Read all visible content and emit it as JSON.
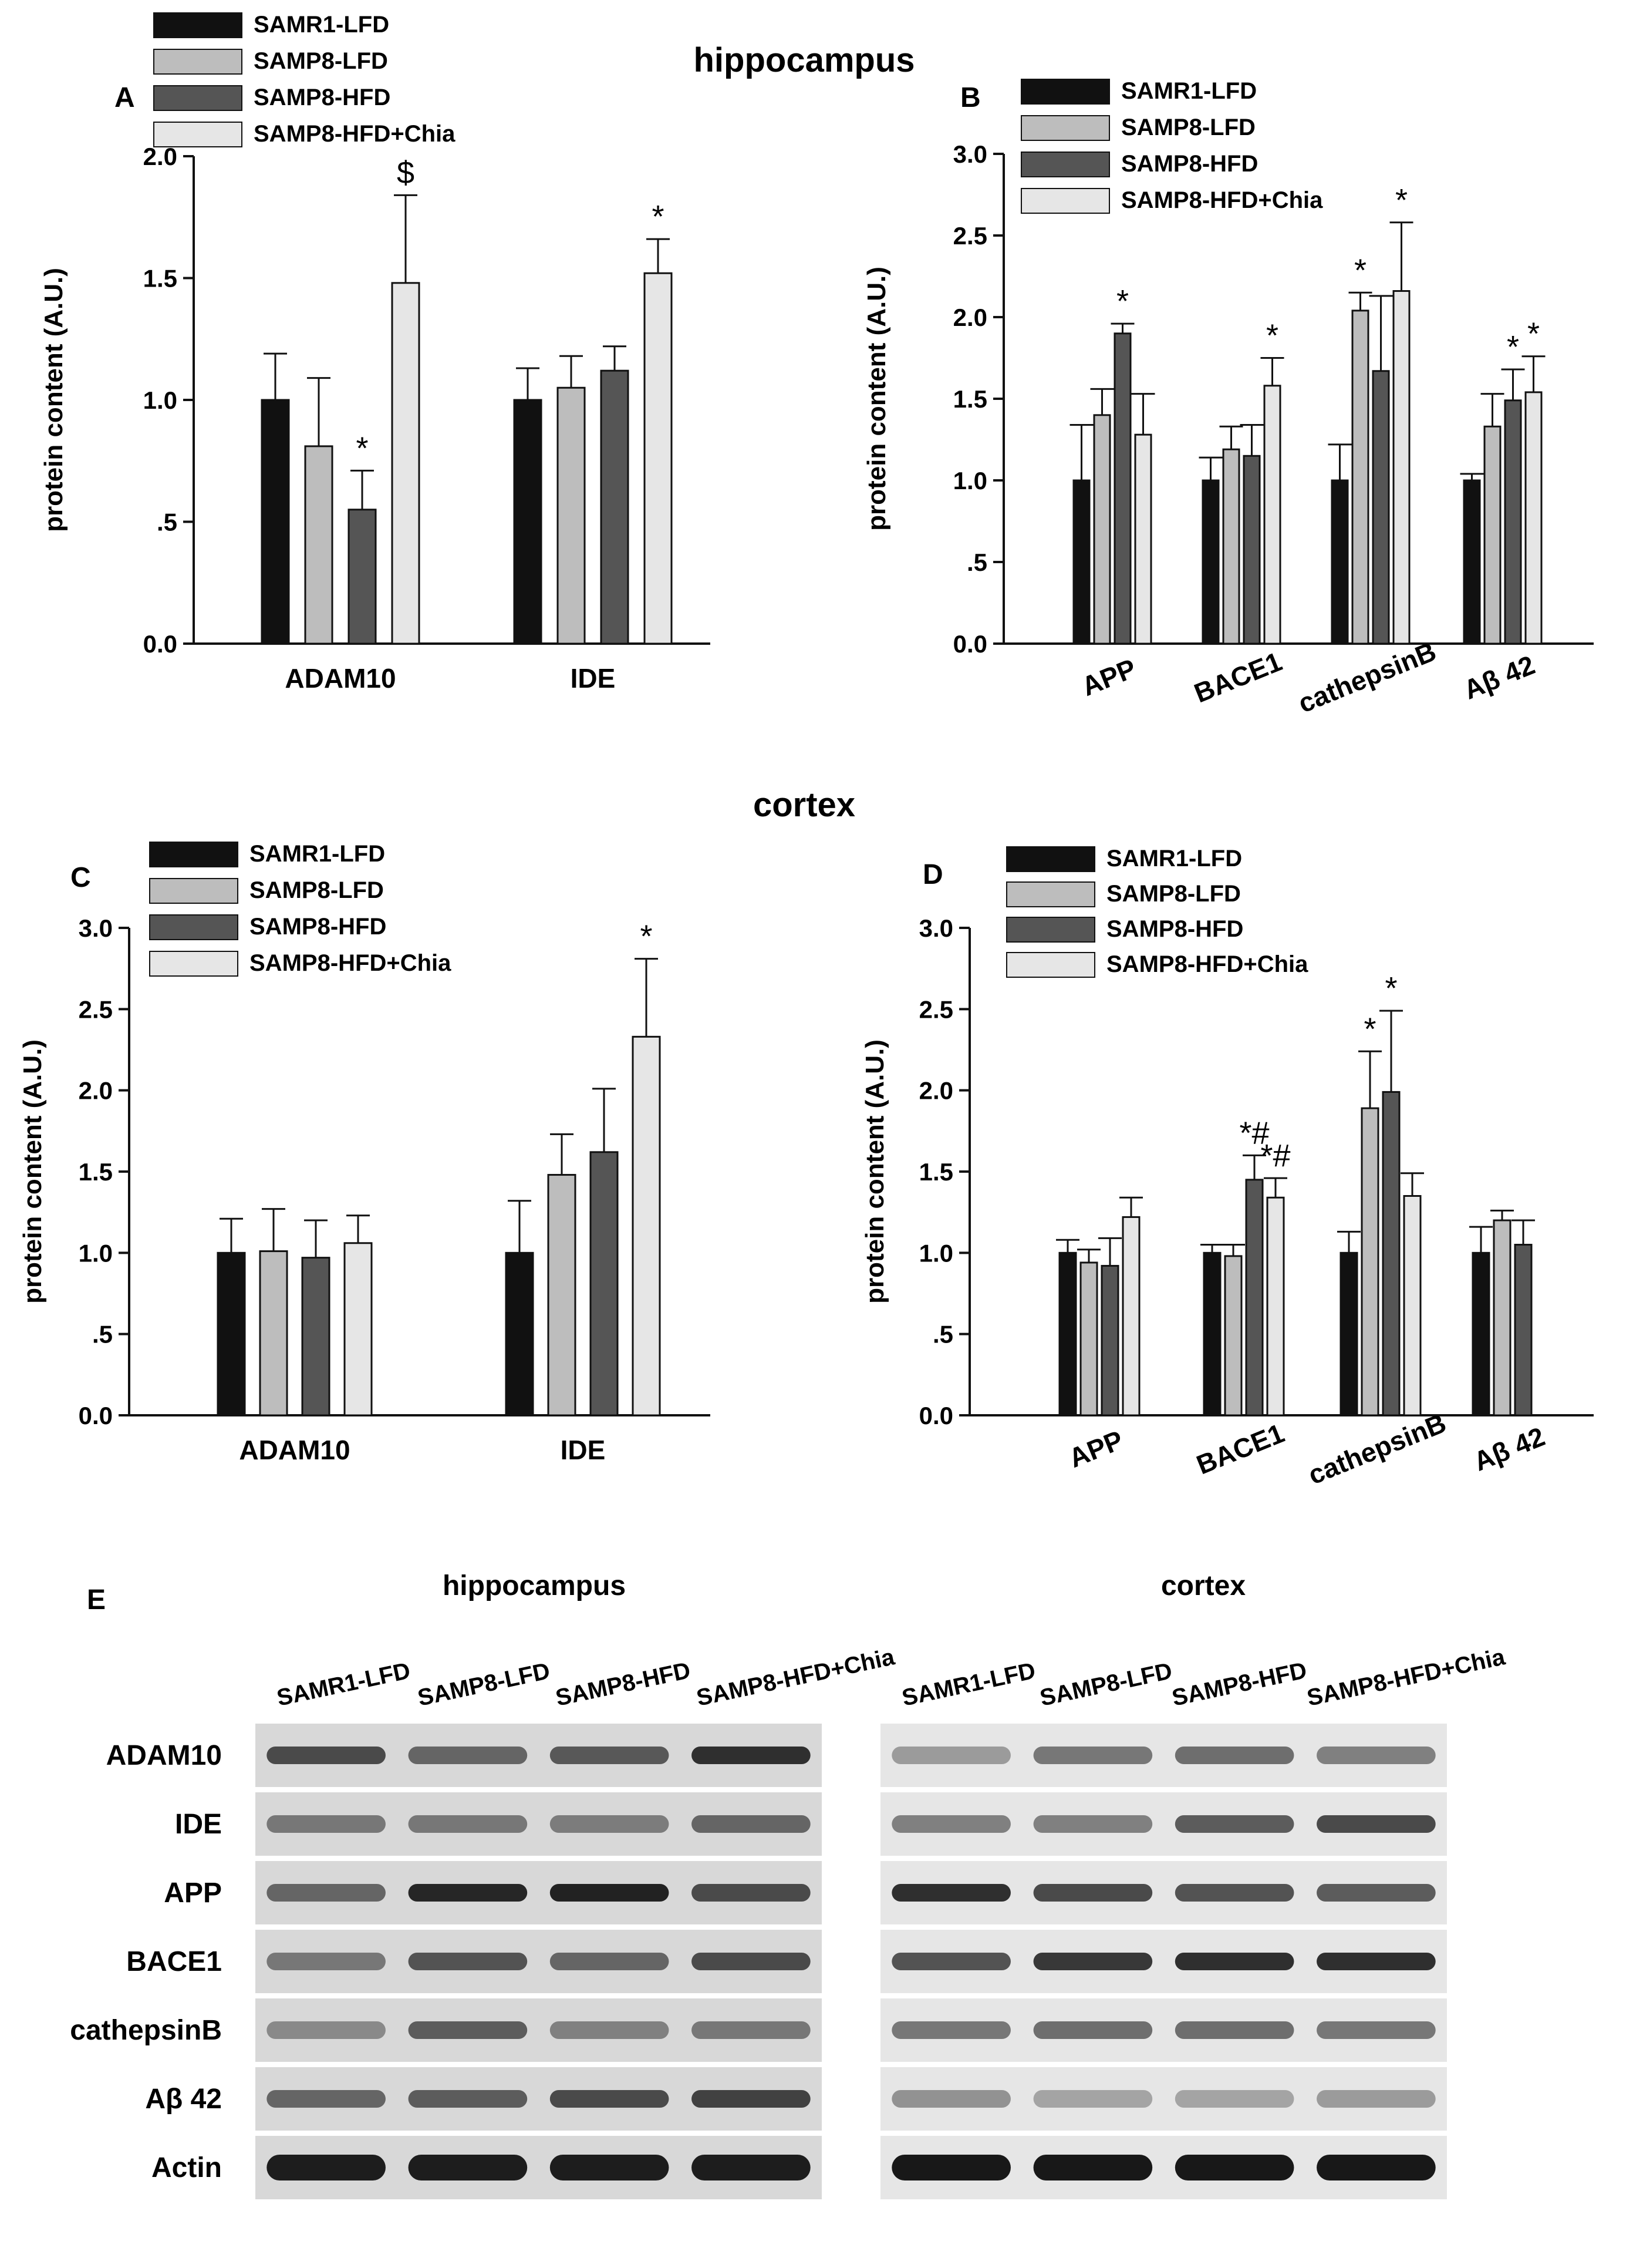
{
  "figure": {
    "section_titles": {
      "hippocampus": "hippocampus",
      "cortex": "cortex"
    },
    "panel_letters": [
      "A",
      "B",
      "C",
      "D",
      "E"
    ]
  },
  "colors": {
    "SAMR1-LFD": "#111111",
    "SAMP8-LFD": "#bdbdbd",
    "SAMP8-HFD": "#555555",
    "SAMP8-HFD+Chia": "#e6e6e6"
  },
  "chart_data": [
    {
      "panel": "A",
      "type": "bar",
      "ylabel": "protein content (A.U.)",
      "ylim": [
        0,
        2.0
      ],
      "yticks": [
        "0.0",
        ".5",
        "1.0",
        "1.5",
        "2.0"
      ],
      "categories": [
        "ADAM10",
        "IDE"
      ],
      "category_label_rotation": 0,
      "legend": [
        "SAMR1-LFD",
        "SAMP8-LFD",
        "SAMP8-HFD",
        "SAMP8-HFD+Chia"
      ],
      "series": [
        {
          "name": "SAMR1-LFD",
          "values": [
            1.0,
            1.0
          ],
          "errors": [
            0.19,
            0.13
          ],
          "marks": [
            "",
            ""
          ]
        },
        {
          "name": "SAMP8-LFD",
          "values": [
            0.81,
            1.05
          ],
          "errors": [
            0.28,
            0.13
          ],
          "marks": [
            "",
            ""
          ]
        },
        {
          "name": "SAMP8-HFD",
          "values": [
            0.55,
            1.12
          ],
          "errors": [
            0.16,
            0.1
          ],
          "marks": [
            "*",
            ""
          ]
        },
        {
          "name": "SAMP8-HFD+Chia",
          "values": [
            1.48,
            1.52
          ],
          "errors": [
            0.36,
            0.14
          ],
          "marks": [
            "$",
            "*"
          ]
        }
      ]
    },
    {
      "panel": "B",
      "type": "bar",
      "ylabel": "protein content (A.U.)",
      "ylim": [
        0,
        3.0
      ],
      "yticks": [
        "0.0",
        ".5",
        "1.0",
        "1.5",
        "2.0",
        "2.5",
        "3.0"
      ],
      "categories": [
        "APP",
        "BACE1",
        "cathepsinB",
        "Aβ 42"
      ],
      "category_label_rotation": -22,
      "legend": [
        "SAMR1-LFD",
        "SAMP8-LFD",
        "SAMP8-HFD",
        "SAMP8-HFD+Chia"
      ],
      "series": [
        {
          "name": "SAMR1-LFD",
          "values": [
            1.0,
            1.0,
            1.0,
            1.0
          ],
          "errors": [
            0.34,
            0.14,
            0.22,
            0.04
          ],
          "marks": [
            "",
            "",
            "",
            ""
          ]
        },
        {
          "name": "SAMP8-LFD",
          "values": [
            1.4,
            1.19,
            2.04,
            1.33
          ],
          "errors": [
            0.16,
            0.14,
            0.11,
            0.2
          ],
          "marks": [
            "",
            "",
            "*",
            ""
          ]
        },
        {
          "name": "SAMP8-HFD",
          "values": [
            1.9,
            1.15,
            1.67,
            1.49
          ],
          "errors": [
            0.06,
            0.19,
            0.46,
            0.19
          ],
          "marks": [
            "*",
            "",
            "",
            "*"
          ]
        },
        {
          "name": "SAMP8-HFD+Chia",
          "values": [
            1.28,
            1.58,
            2.16,
            1.54
          ],
          "errors": [
            0.25,
            0.17,
            0.42,
            0.22
          ],
          "marks": [
            "",
            "*",
            "*",
            "*"
          ]
        }
      ]
    },
    {
      "panel": "C",
      "type": "bar",
      "ylabel": "protein content (A.U.)",
      "ylim": [
        0,
        3.0
      ],
      "yticks": [
        "0.0",
        ".5",
        "1.0",
        "1.5",
        "2.0",
        "2.5",
        "3.0"
      ],
      "categories": [
        "ADAM10",
        "IDE"
      ],
      "category_label_rotation": 0,
      "legend": [
        "SAMR1-LFD",
        "SAMP8-LFD",
        "SAMP8-HFD",
        "SAMP8-HFD+Chia"
      ],
      "series": [
        {
          "name": "SAMR1-LFD",
          "values": [
            1.0,
            1.0
          ],
          "errors": [
            0.21,
            0.32
          ],
          "marks": [
            "",
            ""
          ]
        },
        {
          "name": "SAMP8-LFD",
          "values": [
            1.01,
            1.48
          ],
          "errors": [
            0.26,
            0.25
          ],
          "marks": [
            "",
            ""
          ]
        },
        {
          "name": "SAMP8-HFD",
          "values": [
            0.97,
            1.62
          ],
          "errors": [
            0.23,
            0.39
          ],
          "marks": [
            "",
            ""
          ]
        },
        {
          "name": "SAMP8-HFD+Chia",
          "values": [
            1.06,
            2.33
          ],
          "errors": [
            0.17,
            0.48
          ],
          "marks": [
            "",
            "*"
          ]
        }
      ]
    },
    {
      "panel": "D",
      "type": "bar",
      "ylabel": "protein content (A.U.)",
      "ylim": [
        0,
        3.0
      ],
      "yticks": [
        "0.0",
        ".5",
        "1.0",
        "1.5",
        "2.0",
        "2.5",
        "3.0"
      ],
      "categories": [
        "APP",
        "BACE1",
        "cathepsinB",
        "Aβ 42"
      ],
      "category_label_rotation": -22,
      "legend": [
        "SAMR1-LFD",
        "SAMP8-LFD",
        "SAMP8-HFD",
        "SAMP8-HFD+Chia"
      ],
      "series": [
        {
          "name": "SAMR1-LFD",
          "values": [
            1.0,
            1.0,
            1.0,
            1.0
          ],
          "errors": [
            0.08,
            0.05,
            0.13,
            0.16
          ],
          "marks": [
            "",
            "",
            "",
            ""
          ]
        },
        {
          "name": "SAMP8-LFD",
          "values": [
            0.94,
            0.98,
            1.89,
            1.2
          ],
          "errors": [
            0.08,
            0.07,
            0.35,
            0.06
          ],
          "marks": [
            "",
            "",
            "*",
            ""
          ]
        },
        {
          "name": "SAMP8-HFD",
          "values": [
            0.92,
            1.45,
            1.99,
            1.05
          ],
          "errors": [
            0.17,
            0.15,
            0.5,
            0.15
          ],
          "marks": [
            "",
            "*#",
            "*",
            ""
          ]
        },
        {
          "name": "SAMP8-HFD+Chia",
          "values": [
            1.22,
            1.34,
            1.35,
            null
          ],
          "errors": [
            0.12,
            0.12,
            0.14,
            null
          ],
          "marks": [
            "",
            "*#",
            "",
            ""
          ]
        }
      ]
    }
  ],
  "blot": {
    "panel": "E",
    "titles": [
      "hippocampus",
      "cortex"
    ],
    "lanes": [
      "SAMR1-LFD",
      "SAMP8-LFD",
      "SAMP8-HFD",
      "SAMP8-HFD+Chia"
    ],
    "rows": [
      "ADAM10",
      "IDE",
      "APP",
      "BACE1",
      "cathepsinB",
      "Aβ 42",
      "Actin"
    ],
    "hippocampus_intensity": [
      [
        0.7,
        0.55,
        0.62,
        0.85
      ],
      [
        0.45,
        0.45,
        0.42,
        0.55
      ],
      [
        0.55,
        0.9,
        0.92,
        0.7
      ],
      [
        0.45,
        0.65,
        0.55,
        0.7
      ],
      [
        0.35,
        0.6,
        0.4,
        0.45
      ],
      [
        0.55,
        0.6,
        0.7,
        0.75
      ],
      [
        0.95,
        0.95,
        0.95,
        0.95
      ]
    ],
    "cortex_intensity": [
      [
        0.25,
        0.45,
        0.5,
        0.4
      ],
      [
        0.4,
        0.4,
        0.6,
        0.7
      ],
      [
        0.85,
        0.7,
        0.65,
        0.6
      ],
      [
        0.65,
        0.8,
        0.85,
        0.85
      ],
      [
        0.45,
        0.5,
        0.5,
        0.45
      ],
      [
        0.3,
        0.2,
        0.2,
        0.25
      ],
      [
        0.98,
        0.98,
        0.98,
        0.98
      ]
    ]
  }
}
